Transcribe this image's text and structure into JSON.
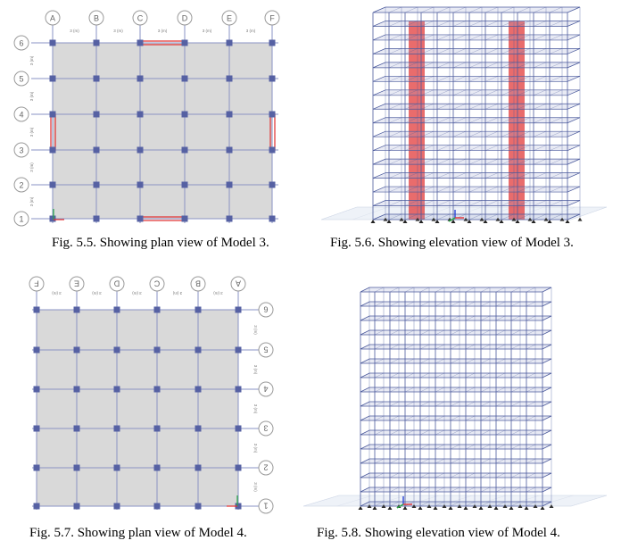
{
  "figures": [
    {
      "id": "5.5",
      "caption": "Fig. 5.5. Showing plan view of Model 3.",
      "col_labels": [
        "A",
        "B",
        "C",
        "D",
        "E",
        "F"
      ],
      "row_labels": [
        "6",
        "5",
        "4",
        "3",
        "2",
        "1"
      ],
      "dim_label": "3 (m)"
    },
    {
      "id": "5.6",
      "caption": "Fig. 5.6. Showing elevation view of Model 3."
    },
    {
      "id": "5.7",
      "caption": "Fig. 5.7. Showing plan view of Model 4.",
      "col_labels": [
        "F",
        "E",
        "D",
        "C",
        "B",
        "A"
      ],
      "row_labels": [
        "6",
        "5",
        "4",
        "3",
        "2",
        "1"
      ],
      "dim_label": "3 (m)"
    },
    {
      "id": "5.8",
      "caption": "Fig. 5.8. Showing elevation view of Model 4."
    }
  ],
  "colors": {
    "slab": "#d9d9d9",
    "grid_line": "#8a93c4",
    "column": "#5661a3",
    "shear_wall": "#e23b3b",
    "frame": "#4b5a9c",
    "bubble": "#9a9a9a"
  }
}
